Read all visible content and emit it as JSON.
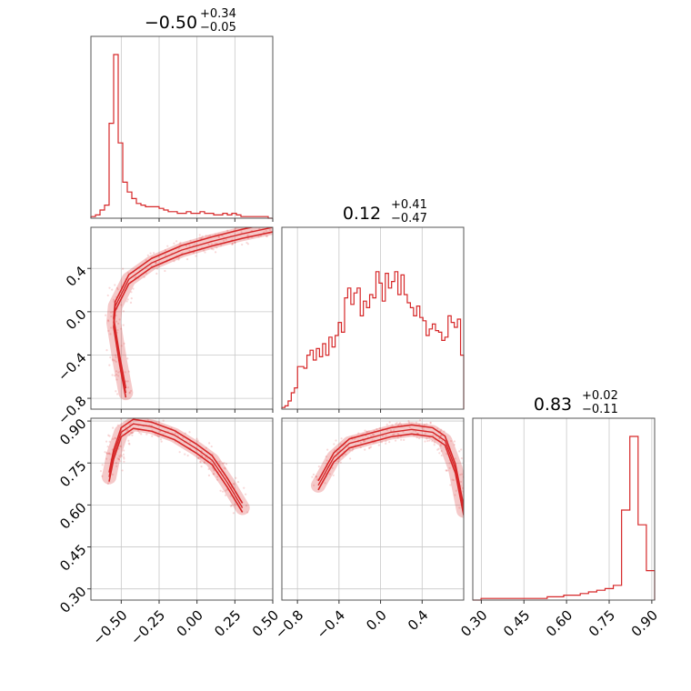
{
  "figure": {
    "type": "corner-plot",
    "color": "#d62728",
    "grid": true
  },
  "chart_data": [
    {
      "type": "histogram",
      "panel": "hist-0",
      "title": {
        "median": "-0.50",
        "plus": "+0.34",
        "minus": "-0.05"
      },
      "xlim": [
        -0.7,
        0.5
      ],
      "bins": [
        [
          -0.7,
          0.01
        ],
        [
          -0.67,
          0.02
        ],
        [
          -0.64,
          0.05
        ],
        [
          -0.61,
          0.08
        ],
        [
          -0.58,
          0.58
        ],
        [
          -0.55,
          1.0
        ],
        [
          -0.52,
          0.46
        ],
        [
          -0.49,
          0.22
        ],
        [
          -0.46,
          0.16
        ],
        [
          -0.43,
          0.12
        ],
        [
          -0.4,
          0.09
        ],
        [
          -0.37,
          0.08
        ],
        [
          -0.34,
          0.07
        ],
        [
          -0.31,
          0.07
        ],
        [
          -0.28,
          0.07
        ],
        [
          -0.25,
          0.06
        ],
        [
          -0.22,
          0.05
        ],
        [
          -0.19,
          0.04
        ],
        [
          -0.16,
          0.04
        ],
        [
          -0.13,
          0.03
        ],
        [
          -0.1,
          0.03
        ],
        [
          -0.07,
          0.04
        ],
        [
          -0.04,
          0.03
        ],
        [
          -0.01,
          0.03
        ],
        [
          0.02,
          0.04
        ],
        [
          0.05,
          0.03
        ],
        [
          0.08,
          0.03
        ],
        [
          0.11,
          0.02
        ],
        [
          0.14,
          0.02
        ],
        [
          0.17,
          0.03
        ],
        [
          0.2,
          0.02
        ],
        [
          0.23,
          0.03
        ],
        [
          0.26,
          0.02
        ],
        [
          0.29,
          0.01
        ],
        [
          0.32,
          0.01
        ],
        [
          0.35,
          0.01
        ],
        [
          0.38,
          0.01
        ],
        [
          0.41,
          0.01
        ],
        [
          0.44,
          0.01
        ],
        [
          0.47,
          0.0
        ]
      ]
    },
    {
      "type": "histogram",
      "panel": "hist-1",
      "title": {
        "median": "0.12",
        "plus": "+0.41",
        "minus": "-0.47"
      },
      "xlim": [
        -0.95,
        0.8
      ],
      "bins": [
        [
          -0.95,
          0.01
        ],
        [
          -0.92,
          0.02
        ],
        [
          -0.89,
          0.05
        ],
        [
          -0.86,
          0.1
        ],
        [
          -0.83,
          0.13
        ],
        [
          -0.8,
          0.26
        ],
        [
          -0.77,
          0.26
        ],
        [
          -0.74,
          0.25
        ],
        [
          -0.71,
          0.33
        ],
        [
          -0.68,
          0.36
        ],
        [
          -0.65,
          0.3
        ],
        [
          -0.62,
          0.37
        ],
        [
          -0.59,
          0.32
        ],
        [
          -0.56,
          0.4
        ],
        [
          -0.53,
          0.33
        ],
        [
          -0.5,
          0.44
        ],
        [
          -0.47,
          0.38
        ],
        [
          -0.44,
          0.45
        ],
        [
          -0.41,
          0.53
        ],
        [
          -0.38,
          0.47
        ],
        [
          -0.35,
          0.68
        ],
        [
          -0.32,
          0.74
        ],
        [
          -0.29,
          0.64
        ],
        [
          -0.26,
          0.71
        ],
        [
          -0.23,
          0.74
        ],
        [
          -0.2,
          0.57
        ],
        [
          -0.17,
          0.66
        ],
        [
          -0.14,
          0.62
        ],
        [
          -0.11,
          0.7
        ],
        [
          -0.08,
          0.68
        ],
        [
          -0.05,
          0.84
        ],
        [
          -0.02,
          0.77
        ],
        [
          0.01,
          0.66
        ],
        [
          0.04,
          0.83
        ],
        [
          0.07,
          0.74
        ],
        [
          0.1,
          0.78
        ],
        [
          0.13,
          0.84
        ],
        [
          0.16,
          0.7
        ],
        [
          0.19,
          0.82
        ],
        [
          0.22,
          0.7
        ],
        [
          0.25,
          0.65
        ],
        [
          0.28,
          0.62
        ],
        [
          0.31,
          0.57
        ],
        [
          0.34,
          0.63
        ],
        [
          0.37,
          0.56
        ],
        [
          0.4,
          0.54
        ],
        [
          0.43,
          0.45
        ],
        [
          0.46,
          0.49
        ],
        [
          0.49,
          0.52
        ],
        [
          0.52,
          0.48
        ],
        [
          0.55,
          0.47
        ],
        [
          0.58,
          0.42
        ],
        [
          0.61,
          0.44
        ],
        [
          0.64,
          0.57
        ],
        [
          0.67,
          0.53
        ],
        [
          0.7,
          0.5
        ],
        [
          0.73,
          0.55
        ],
        [
          0.76,
          0.33
        ]
      ]
    },
    {
      "type": "histogram",
      "panel": "hist-2",
      "title": {
        "median": "0.83",
        "plus": "+0.02",
        "minus": "-0.11"
      },
      "xlim": [
        0.27,
        0.91
      ],
      "bins": [
        [
          0.27,
          0.0
        ],
        [
          0.3,
          0.01
        ],
        [
          0.33,
          0.01
        ],
        [
          0.36,
          0.01
        ],
        [
          0.39,
          0.01
        ],
        [
          0.42,
          0.01
        ],
        [
          0.45,
          0.01
        ],
        [
          0.48,
          0.01
        ],
        [
          0.51,
          0.01
        ],
        [
          0.54,
          0.02
        ],
        [
          0.57,
          0.02
        ],
        [
          0.6,
          0.03
        ],
        [
          0.63,
          0.03
        ],
        [
          0.66,
          0.04
        ],
        [
          0.69,
          0.05
        ],
        [
          0.72,
          0.06
        ],
        [
          0.75,
          0.07
        ],
        [
          0.78,
          0.09
        ],
        [
          0.81,
          0.55
        ],
        [
          0.84,
          1.0
        ],
        [
          0.87,
          0.46
        ],
        [
          0.89,
          0.18
        ]
      ]
    },
    {
      "type": "scatter-contour",
      "panel": "scatter-1-0",
      "xlim": [
        -0.7,
        0.5
      ],
      "ylim": [
        -0.9,
        0.78
      ],
      "curve": [
        [
          -0.47,
          -0.75
        ],
        [
          -0.51,
          -0.45
        ],
        [
          -0.55,
          -0.1
        ],
        [
          -0.54,
          0.05
        ],
        [
          -0.45,
          0.3
        ],
        [
          -0.3,
          0.45
        ],
        [
          -0.1,
          0.57
        ],
        [
          0.1,
          0.65
        ],
        [
          0.3,
          0.72
        ],
        [
          0.5,
          0.78
        ]
      ]
    },
    {
      "type": "scatter-contour",
      "panel": "scatter-2-0",
      "xlim": [
        -0.7,
        0.5
      ],
      "ylim": [
        0.26,
        0.91
      ],
      "curve": [
        [
          -0.58,
          0.7
        ],
        [
          -0.55,
          0.78
        ],
        [
          -0.5,
          0.86
        ],
        [
          -0.42,
          0.89
        ],
        [
          -0.3,
          0.88
        ],
        [
          -0.15,
          0.85
        ],
        [
          0.0,
          0.8
        ],
        [
          0.1,
          0.76
        ],
        [
          0.2,
          0.68
        ],
        [
          0.3,
          0.59
        ]
      ]
    },
    {
      "type": "scatter-contour",
      "panel": "scatter-2-1",
      "xlim": [
        -0.95,
        0.8
      ],
      "ylim": [
        0.26,
        0.91
      ],
      "curve": [
        [
          -0.6,
          0.67
        ],
        [
          -0.45,
          0.77
        ],
        [
          -0.3,
          0.82
        ],
        [
          -0.1,
          0.84
        ],
        [
          0.1,
          0.86
        ],
        [
          0.3,
          0.87
        ],
        [
          0.5,
          0.86
        ],
        [
          0.62,
          0.83
        ],
        [
          0.72,
          0.73
        ],
        [
          0.8,
          0.58
        ]
      ]
    }
  ],
  "axes": {
    "x0": {
      "ticks": [
        "−0.50",
        "−0.25",
        "0.00",
        "0.25",
        "0.50"
      ],
      "values": [
        -0.5,
        -0.25,
        0.0,
        0.25,
        0.5
      ]
    },
    "x1": {
      "ticks": [
        "−0.8",
        "−0.4",
        "0.0",
        "0.4"
      ],
      "values": [
        -0.8,
        -0.4,
        0.0,
        0.4
      ]
    },
    "x2": {
      "ticks": [
        "0.30",
        "0.45",
        "0.60",
        "0.75",
        "0.90"
      ],
      "values": [
        0.3,
        0.45,
        0.6,
        0.75,
        0.9
      ]
    },
    "y1": {
      "ticks": [
        "0.4",
        "0.0",
        "−0.4",
        "−0.8"
      ],
      "values": [
        0.4,
        0.0,
        -0.4,
        -0.8
      ]
    },
    "y2": {
      "ticks": [
        "0.90",
        "0.75",
        "0.60",
        "0.45",
        "0.30"
      ],
      "values": [
        0.9,
        0.75,
        0.6,
        0.45,
        0.3
      ]
    }
  }
}
